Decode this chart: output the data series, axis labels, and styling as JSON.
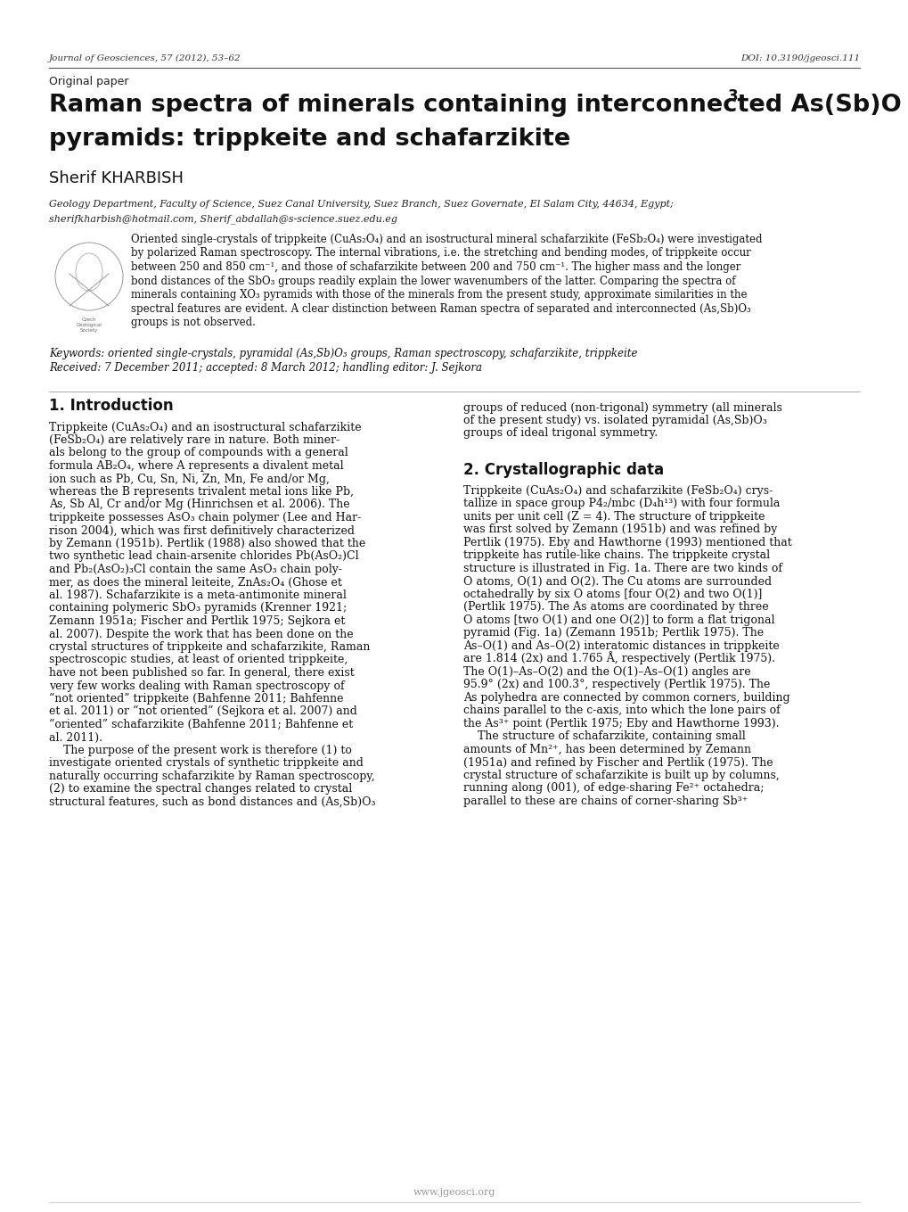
{
  "background_color": "#ffffff",
  "page_width": 10.2,
  "page_height": 13.59,
  "header_journal": "Journal of Geosciences, 57 (2012), 53–62",
  "header_doi": "DOI: 10.3190/jgeosci.111",
  "label_original": "Original paper",
  "title_line1": "Raman spectra of minerals containing interconnected As(Sb)O",
  "title_sub3": "3",
  "title_line2": "pyramids: trippkeite and schafarzikite",
  "author": "Sherif KHARBISH",
  "affiliation_line1": "Geology Department, Faculty of Science, Suez Canal University, Suez Branch, Suez Governate, El Salam City, 44634, Egypt;",
  "affiliation_line2": "sherifkharbish@hotmail.com, Sherif_abdallah@s-science.suez.edu.eg",
  "abstract_lines": [
    "Oriented single-crystals of trippkeite (CuAs₂O₄) and an isostructural mineral schafarzikite (FeSb₂O₄) were investigated",
    "by polarized Raman spectroscopy. The internal vibrations, i.e. the stretching and bending modes, of trippkeite occur",
    "between 250 and 850 cm⁻¹, and those of schafarzikite between 200 and 750 cm⁻¹. The higher mass and the longer",
    "bond distances of the SbO₃ groups readily explain the lower wavenumbers of the latter. Comparing the spectra of",
    "minerals containing XO₃ pyramids with those of the minerals from the present study, approximate similarities in the",
    "spectral features are evident. A clear distinction between Raman spectra of separated and interconnected (As,Sb)O₃",
    "groups is not observed."
  ],
  "keywords_line": "Keywords: oriented single-crystals, pyramidal (As,Sb)O₃ groups, Raman spectroscopy, schafarzikite, trippkeite",
  "received_line": "Received: 7 December 2011; accepted: 8 March 2012; handling editor: J. Sejkora",
  "section1_title": "1. Introduction",
  "section1_col1_lines": [
    "Trippkeite (CuAs₂O₄) and an isostructural schafarzikite",
    "(FeSb₂O₄) are relatively rare in nature. Both miner-",
    "als belong to the group of compounds with a general",
    "formula AB₂O₄, where A represents a divalent metal",
    "ion such as Pb, Cu, Sn, Ni, Zn, Mn, Fe and/or Mg,",
    "whereas the B represents trivalent metal ions like Pb,",
    "As, Sb Al, Cr and/or Mg (Hinrichsen et al. 2006). The",
    "trippkeite possesses AsO₃ chain polymer (Lee and Har-",
    "rison 2004), which was first definitively characterized",
    "by Zemann (1951b). Pertlik (1988) also showed that the",
    "two synthetic lead chain-arsenite chlorides Pb(AsO₂)Cl",
    "and Pb₂(AsO₂)₃Cl contain the same AsO₃ chain poly-",
    "mer, as does the mineral leiteite, ZnAs₂O₄ (Ghose et",
    "al. 1987). Schafarzikite is a meta-antimonite mineral",
    "containing polymeric SbO₃ pyramids (Krenner 1921;",
    "Zemann 1951a; Fischer and Pertlik 1975; Sejkora et",
    "al. 2007). Despite the work that has been done on the",
    "crystal structures of trippkeite and schafarzikite, Raman",
    "spectroscopic studies, at least of oriented trippkeite,",
    "have not been published so far. In general, there exist",
    "very few works dealing with Raman spectroscopy of",
    "“not oriented” trippkeite (Bahfenne 2011; Bahfenne",
    "et al. 2011) or “not oriented” (Sejkora et al. 2007) and",
    "“oriented” schafarzikite (Bahfenne 2011; Bahfenne et",
    "al. 2011).",
    "    The purpose of the present work is therefore (1) to",
    "investigate oriented crystals of synthetic trippkeite and",
    "naturally occurring schafarzikite by Raman spectroscopy,",
    "(2) to examine the spectral changes related to crystal",
    "structural features, such as bond distances and (As,Sb)O₃"
  ],
  "section1_col2_lines": [
    "groups of reduced (non-trigonal) symmetry (all minerals",
    "of the present study) vs. isolated pyramidal (As,Sb)O₃",
    "groups of ideal trigonal symmetry."
  ],
  "section2_title": "2. Crystallographic data",
  "section2_col2_lines": [
    "Trippkeite (CuAs₂O₄) and schafarzikite (FeSb₂O₄) crys-",
    "tallize in space group P4₂/mbc (D₄h¹³) with four formula",
    "units per unit cell (Z = 4). The structure of trippkeite",
    "was first solved by Zemann (1951b) and was refined by",
    "Pertlik (1975). Eby and Hawthorne (1993) mentioned that",
    "trippkeite has rutile-like chains. The trippkeite crystal",
    "structure is illustrated in Fig. 1a. There are two kinds of",
    "O atoms, O(1) and O(2). The Cu atoms are surrounded",
    "octahedrally by six O atoms [four O(2) and two O(1)]",
    "(Pertlik 1975). The As atoms are coordinated by three",
    "O atoms [two O(1) and one O(2)] to form a flat trigonal",
    "pyramid (Fig. 1a) (Zemann 1951b; Pertlik 1975). The",
    "As–O(1) and As–O(2) interatomic distances in trippkeite",
    "are 1.814 (2x) and 1.765 Å, respectively (Pertlik 1975).",
    "The O(1)–As–O(2) and the O(1)–As–O(1) angles are",
    "95.9° (2x) and 100.3°, respectively (Pertlik 1975). The",
    "As polyhedra are connected by common corners, building",
    "chains parallel to the c-axis, into which the lone pairs of",
    "the As³⁺ point (Pertlik 1975; Eby and Hawthorne 1993).",
    "    The structure of schafarzikite, containing small",
    "amounts of Mn²⁺, has been determined by Zemann",
    "(1951a) and refined by Fischer and Pertlik (1975). The",
    "crystal structure of schafarzikite is built up by columns,",
    "running along (001), of edge-sharing Fe²⁺ octahedra;",
    "parallel to these are chains of corner-sharing Sb³⁺"
  ],
  "footer": "www.jgeosci.org",
  "serif_font": "DejaVu Serif",
  "sans_font": "DejaVu Sans"
}
